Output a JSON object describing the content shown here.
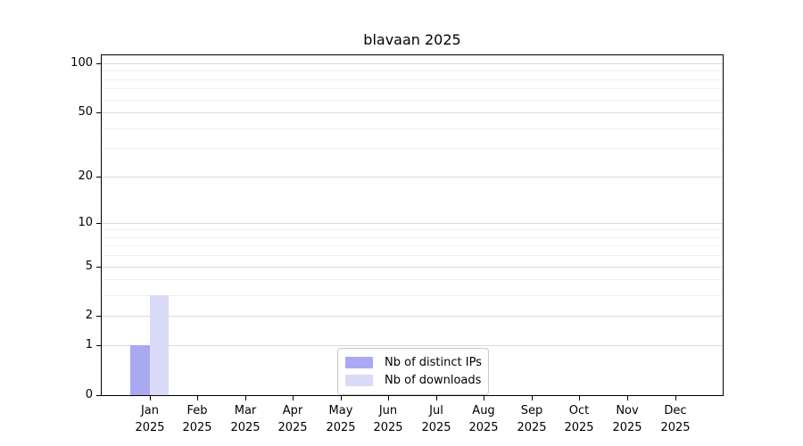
{
  "title": "blavaan 2025",
  "year": "2025",
  "chart_data": {
    "type": "bar",
    "title": "blavaan 2025",
    "categories": [
      "Jan",
      "Feb",
      "Mar",
      "Apr",
      "May",
      "Jun",
      "Jul",
      "Aug",
      "Sep",
      "Oct",
      "Nov",
      "Dec"
    ],
    "year": "2025",
    "series": [
      {
        "name": "Nb of distinct IPs",
        "color": "#a9a9f2",
        "values": [
          1,
          0,
          0,
          0,
          0,
          0,
          0,
          0,
          0,
          0,
          0,
          0
        ]
      },
      {
        "name": "Nb of downloads",
        "color": "#d9d9f8",
        "values": [
          3,
          0,
          0,
          0,
          0,
          0,
          0,
          0,
          0,
          0,
          0,
          0
        ]
      }
    ],
    "xlabel": "",
    "ylabel": "",
    "y_scale": "log1p",
    "y_major_ticks": [
      0,
      1,
      2,
      5,
      10,
      20,
      50,
      100
    ],
    "y_minor_ticks": [
      3,
      4,
      6,
      7,
      8,
      9,
      30,
      40,
      60,
      70,
      80,
      90
    ],
    "ylim": [
      0,
      112
    ],
    "grid": "horizontal",
    "legend_position": "lower center inside"
  },
  "colors": {
    "major_grid": "#d9d9d9",
    "minor_grid": "#efefef",
    "spine": "#000000",
    "text": "#000000",
    "background": "#ffffff"
  }
}
